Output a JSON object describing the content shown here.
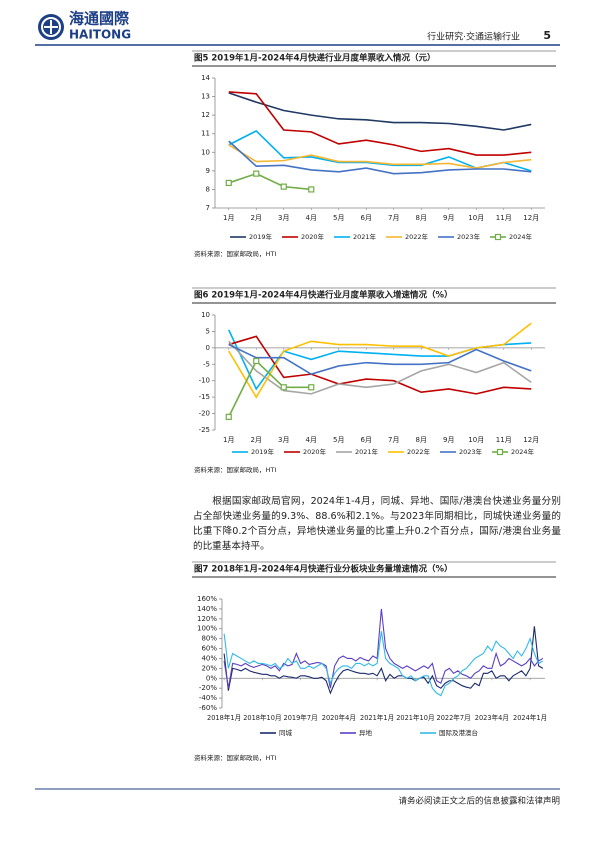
{
  "header": {
    "logo_cn": "海通國際",
    "logo_en": "HAITONG",
    "section": "行业研究·交通运输行业",
    "page": "5"
  },
  "figures": [
    {
      "title": "图5 2019年1月-2024年4月快递行业月度单票收入情况（元）",
      "chart": {
        "type": "line",
        "categories": [
          "1月",
          "2月",
          "3月",
          "4月",
          "5月",
          "6月",
          "7月",
          "8月",
          "9月",
          "10月",
          "11月",
          "12月"
        ],
        "ylim": [
          7,
          14
        ],
        "yticks": [
          7,
          8,
          9,
          10,
          11,
          12,
          13,
          14
        ],
        "grid": false,
        "series": [
          {
            "name": "2019年",
            "color": "#1f3864",
            "values": [
              13.2,
              12.7,
              12.25,
              12.0,
              11.8,
              11.75,
              11.6,
              11.6,
              11.55,
              11.4,
              11.2,
              11.5
            ]
          },
          {
            "name": "2020年",
            "color": "#c00000",
            "values": [
              13.25,
              13.15,
              11.2,
              11.1,
              10.45,
              10.65,
              10.4,
              10.05,
              10.2,
              9.85,
              9.85,
              10.0
            ]
          },
          {
            "name": "2021年",
            "color": "#00b0f0",
            "values": [
              10.4,
              11.15,
              9.7,
              9.75,
              9.45,
              9.45,
              9.3,
              9.3,
              9.75,
              9.15,
              9.45,
              9.0
            ]
          },
          {
            "name": "2022年",
            "color": "#f5b731",
            "values": [
              10.4,
              9.5,
              9.55,
              9.85,
              9.5,
              9.5,
              9.35,
              9.35,
              9.4,
              9.15,
              9.45,
              9.6
            ]
          },
          {
            "name": "2023年",
            "color": "#4472c4",
            "values": [
              10.6,
              9.25,
              9.3,
              9.05,
              8.95,
              9.15,
              8.85,
              8.9,
              9.05,
              9.1,
              9.1,
              8.95
            ]
          },
          {
            "name": "2024年",
            "color": "#70ad47",
            "marker": "square",
            "values": [
              8.35,
              8.85,
              8.15,
              8.0,
              null,
              null,
              null,
              null,
              null,
              null,
              null,
              null
            ]
          }
        ]
      },
      "source": "资料来源：国家邮政局，HTI"
    },
    {
      "title": "图6 2019年1月-2024年4月快递行业月度单票收入增速情况（%）",
      "chart": {
        "type": "line",
        "categories": [
          "1月",
          "2月",
          "3月",
          "4月",
          "5月",
          "6月",
          "7月",
          "8月",
          "9月",
          "10月",
          "11月",
          "12月"
        ],
        "ylim": [
          -25,
          10
        ],
        "yticks": [
          -25,
          -20,
          -15,
          -10,
          -5,
          0,
          5,
          10
        ],
        "grid": false,
        "series": [
          {
            "name": "2019年",
            "color": "#00b0f0",
            "values": [
              5.5,
              -12.5,
              -1,
              -3.5,
              -1,
              -1.5,
              -2,
              -2.5,
              -2.5,
              0,
              1,
              1.5
            ]
          },
          {
            "name": "2020年",
            "color": "#c00000",
            "values": [
              1,
              3.5,
              -9,
              -8,
              -11,
              -9.5,
              -10,
              -13.5,
              -12.5,
              -14,
              -12,
              -12.5
            ]
          },
          {
            "name": "2021年",
            "color": "#a5a5a5",
            "values": [
              2,
              -7,
              -13,
              -14,
              -11,
              -12,
              -11,
              -7,
              -5,
              -7.5,
              -4.5,
              -10.5
            ]
          },
          {
            "name": "2022年",
            "color": "#ffc000",
            "values": [
              -1,
              -15,
              -1,
              2,
              1,
              1,
              0.5,
              0.5,
              -2.5,
              0,
              1,
              7.5
            ]
          },
          {
            "name": "2023年",
            "color": "#4472c4",
            "values": [
              1,
              -3,
              -3,
              -8,
              -5.5,
              -4.5,
              -5,
              -5,
              -4.5,
              -0.5,
              -4,
              -7
            ]
          },
          {
            "name": "2024年",
            "color": "#70ad47",
            "marker": "square",
            "values": [
              -21,
              -4,
              -12,
              -12,
              null,
              null,
              null,
              null,
              null,
              null,
              null,
              null
            ]
          }
        ]
      },
      "source": "资料来源：国家邮政局，HTI"
    },
    {
      "title": "图7 2018年1月-2024年4月快递行业分板块业务量增速情况（%）",
      "chart": {
        "type": "line",
        "categories": [
          "2018年1月",
          null,
          null,
          null,
          null,
          null,
          null,
          null,
          null,
          "2018年10月",
          null,
          null,
          null,
          null,
          null,
          null,
          null,
          null,
          "2019年7月",
          null,
          null,
          null,
          null,
          null,
          null,
          null,
          null,
          "2020年4月",
          null,
          null,
          null,
          null,
          null,
          null,
          null,
          null,
          "2021年1月",
          null,
          null,
          null,
          null,
          null,
          null,
          null,
          null,
          "2021年10月",
          null,
          null,
          null,
          null,
          null,
          null,
          null,
          null,
          "2022年7月",
          null,
          null,
          null,
          null,
          null,
          null,
          null,
          null,
          "2023年4月",
          null,
          null,
          null,
          null,
          null,
          null,
          null,
          null,
          "2024年1月",
          null,
          null,
          null
        ],
        "ylim": [
          -60,
          160
        ],
        "yticks": [
          {
            "value": -60,
            "label": "-60%"
          },
          {
            "value": -40,
            "label": "-40%"
          },
          {
            "value": -20,
            "label": "-20%"
          },
          {
            "value": 0,
            "label": "0%"
          },
          {
            "value": 20,
            "label": "20%"
          },
          {
            "value": 40,
            "label": "40%"
          },
          {
            "value": 60,
            "label": "60%"
          },
          {
            "value": 80,
            "label": "80%"
          },
          {
            "value": 100,
            "label": "100%"
          },
          {
            "value": 120,
            "label": "120%"
          },
          {
            "value": 140,
            "label": "140%"
          },
          {
            "value": 160,
            "label": "160%"
          }
        ],
        "grid": false,
        "series": [
          {
            "name": "同城",
            "color": "#1a2a6c",
            "values": [
              50,
              -25,
              20,
              18,
              15,
              20,
              15,
              12,
              10,
              8,
              8,
              5,
              5,
              0,
              5,
              3,
              2,
              0,
              5,
              5,
              3,
              0,
              0,
              2,
              -5,
              -30,
              -10,
              5,
              15,
              18,
              15,
              12,
              10,
              10,
              8,
              10,
              5,
              20,
              -5,
              8,
              0,
              5,
              5,
              0,
              0,
              -5,
              0,
              2,
              -10,
              5,
              -15,
              -20,
              -10,
              -5,
              -5,
              -10,
              -15,
              -18,
              -20,
              -10,
              -15,
              10,
              10,
              15,
              0,
              5,
              5,
              -5,
              5,
              10,
              15,
              5,
              20,
              105,
              25,
              20
            ]
          },
          {
            "name": "异地",
            "color": "#5b3fc4",
            "values": [
              35,
              -20,
              30,
              28,
              25,
              30,
              25,
              22,
              25,
              28,
              25,
              20,
              25,
              15,
              30,
              25,
              28,
              50,
              30,
              35,
              28,
              30,
              32,
              30,
              25,
              -20,
              25,
              40,
              45,
              40,
              40,
              35,
              42,
              38,
              35,
              45,
              40,
              140,
              60,
              40,
              30,
              25,
              20,
              25,
              20,
              15,
              20,
              25,
              20,
              30,
              -5,
              -10,
              15,
              20,
              10,
              15,
              8,
              5,
              0,
              10,
              15,
              25,
              20,
              20,
              50,
              25,
              30,
              40,
              35,
              30,
              25,
              30,
              40,
              25,
              35,
              40
            ]
          },
          {
            "name": "国际及港澳台",
            "color": "#33b9e6",
            "values": [
              90,
              20,
              50,
              45,
              40,
              35,
              30,
              35,
              30,
              30,
              28,
              25,
              30,
              20,
              25,
              40,
              30,
              35,
              20,
              20,
              25,
              20,
              25,
              30,
              20,
              -10,
              10,
              20,
              25,
              25,
              20,
              30,
              30,
              25,
              30,
              25,
              30,
              95,
              40,
              30,
              25,
              20,
              5,
              0,
              5,
              -5,
              0,
              5,
              5,
              -20,
              -30,
              -35,
              -15,
              -10,
              0,
              5,
              15,
              20,
              30,
              40,
              45,
              50,
              65,
              55,
              75,
              65,
              60,
              50,
              40,
              55,
              45,
              60,
              80,
              50,
              30,
              35
            ]
          }
        ]
      },
      "source": "资料来源：国家邮政局，HTI"
    }
  ],
  "paragraph": "根据国家邮政局官网，2024年1-4月，同城、异地、国际/港澳台快递业务量分别占全部快递业务量的9.3%、88.6%和2.1%。与2023年同期相比，同城快递业务量的比重下降0.2个百分点，异地快递业务量的比重上升0.2个百分点，国际/港澳台业务量的比重基本持平。",
  "footer": "请务必阅读正文之后的信息披露和法律声明"
}
